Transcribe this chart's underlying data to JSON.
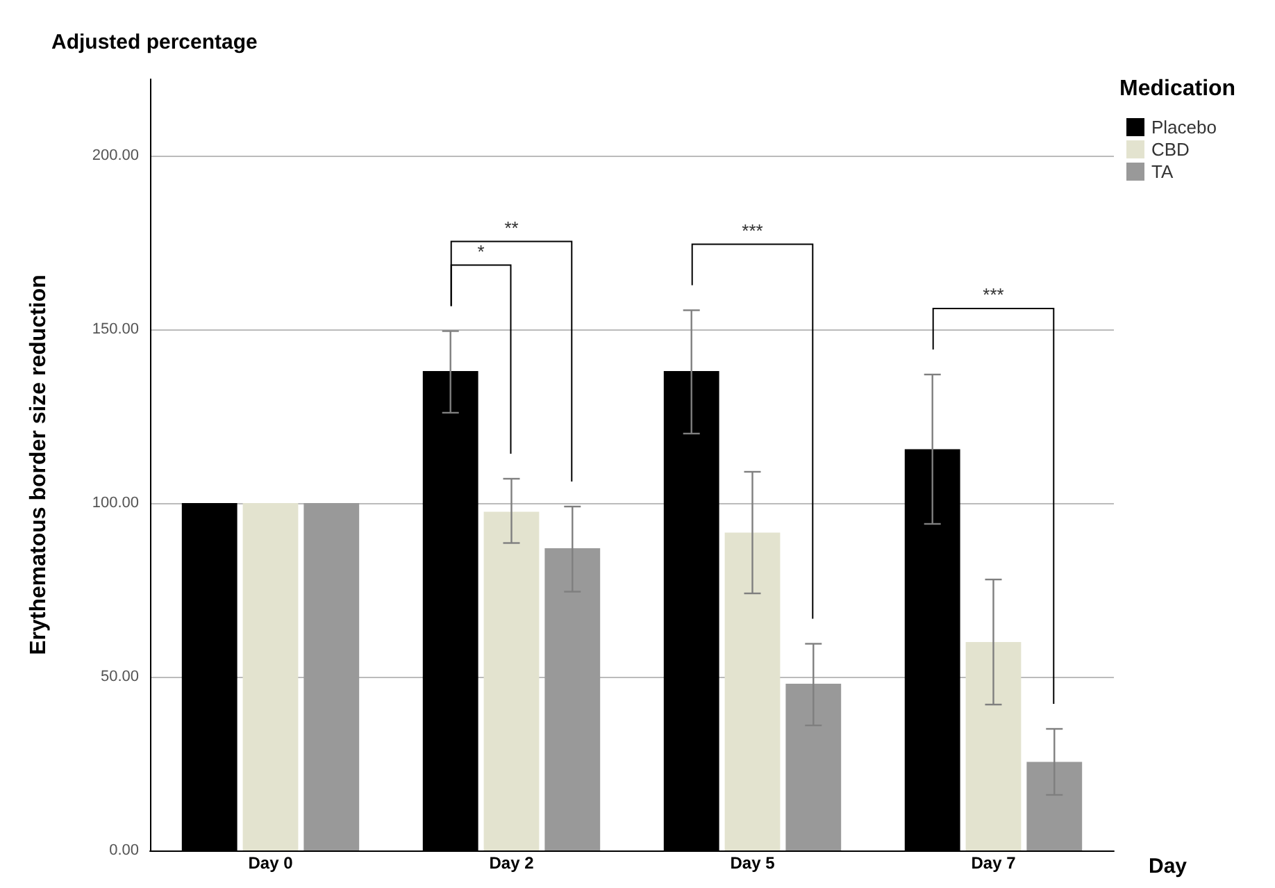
{
  "chart_data": {
    "type": "bar",
    "title": "Adjusted percentage",
    "xlabel": "Day",
    "ylabel": "Erythematous border size reduction",
    "legend_title": "Medication",
    "categories": [
      "Day 0",
      "Day 2",
      "Day 5",
      "Day 7"
    ],
    "series": [
      {
        "name": "Placebo",
        "color": "#000000",
        "values": [
          100,
          138,
          138,
          115.5
        ],
        "errors": [
          null,
          [
            126,
            149.5
          ],
          [
            120,
            155.5
          ],
          [
            94,
            137
          ]
        ]
      },
      {
        "name": "CBD",
        "color": "#e3e3cf",
        "values": [
          100,
          97.5,
          91.5,
          60
        ],
        "errors": [
          null,
          [
            88.5,
            107
          ],
          [
            74,
            109
          ],
          [
            42,
            78
          ]
        ]
      },
      {
        "name": "TA",
        "color": "#999999",
        "values": [
          100,
          87,
          48,
          25.5
        ],
        "errors": [
          null,
          [
            74.5,
            99
          ],
          [
            36,
            59.5
          ],
          [
            16,
            35
          ]
        ]
      }
    ],
    "ylim": [
      0,
      222
    ],
    "yticks": [
      {
        "value": 0,
        "label": "0.00"
      },
      {
        "value": 50,
        "label": "50.00"
      },
      {
        "value": 100,
        "label": "100.00"
      },
      {
        "value": 150,
        "label": "150.00"
      },
      {
        "value": 200,
        "label": "200.00"
      }
    ],
    "grid": "y",
    "legend": "top right",
    "annotations": [
      "*",
      "**",
      "***",
      "***"
    ]
  }
}
